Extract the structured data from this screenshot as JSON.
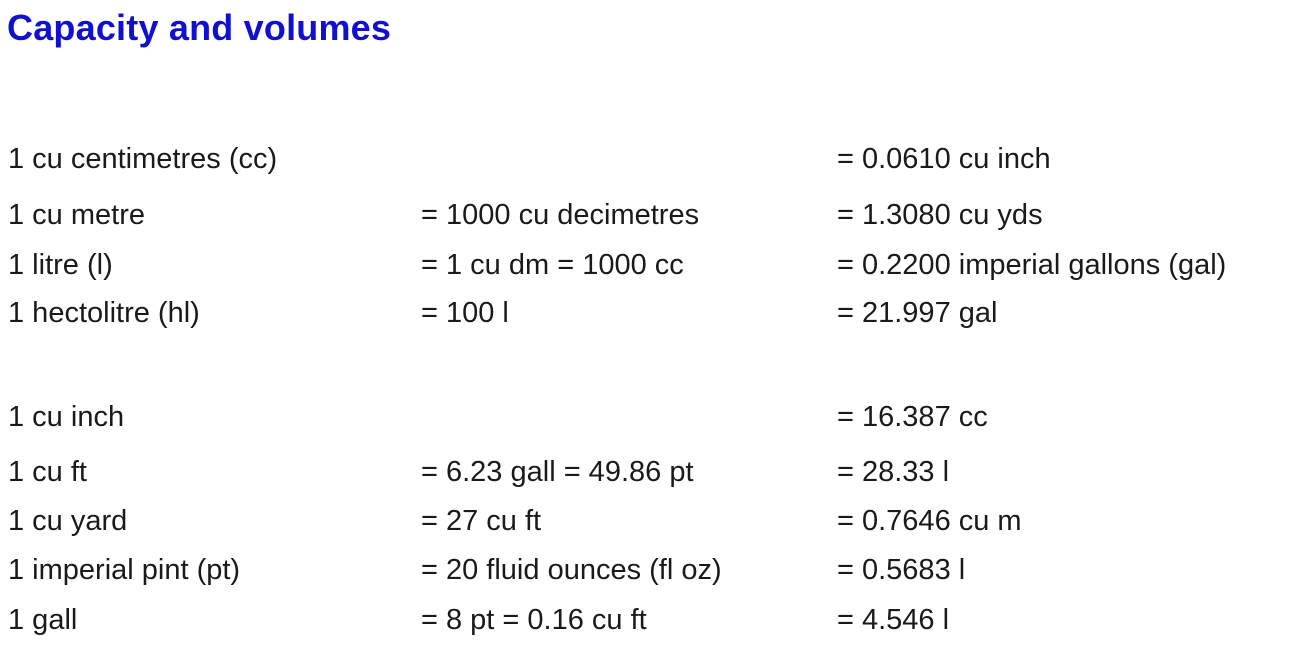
{
  "title": "Capacity and volumes",
  "rows": [
    [
      "1 cu centimetres (cc)",
      "",
      "= 0.0610 cu inch"
    ],
    [
      "1 cu metre",
      "= 1000 cu decimetres",
      "= 1.3080 cu yds"
    ],
    [
      "1 litre (l)",
      "= 1 cu dm = 1000 cc",
      "= 0.2200 imperial gallons (gal)"
    ],
    [
      "1 hectolitre (hl)",
      "= 100 l",
      "= 21.997 gal"
    ],
    [
      "1 cu inch",
      "",
      "= 16.387 cc"
    ],
    [
      "1 cu ft",
      "= 6.23 gall = 49.86 pt",
      "= 28.33 l"
    ],
    [
      "1 cu yard",
      "= 27 cu ft",
      "= 0.7646 cu m"
    ],
    [
      "1 imperial pint (pt)",
      "= 20 fluid ounces (fl oz)",
      "= 0.5683 l"
    ],
    [
      "1 gall",
      "= 8 pt = 0.16 cu ft",
      "= 4.546 l"
    ]
  ]
}
